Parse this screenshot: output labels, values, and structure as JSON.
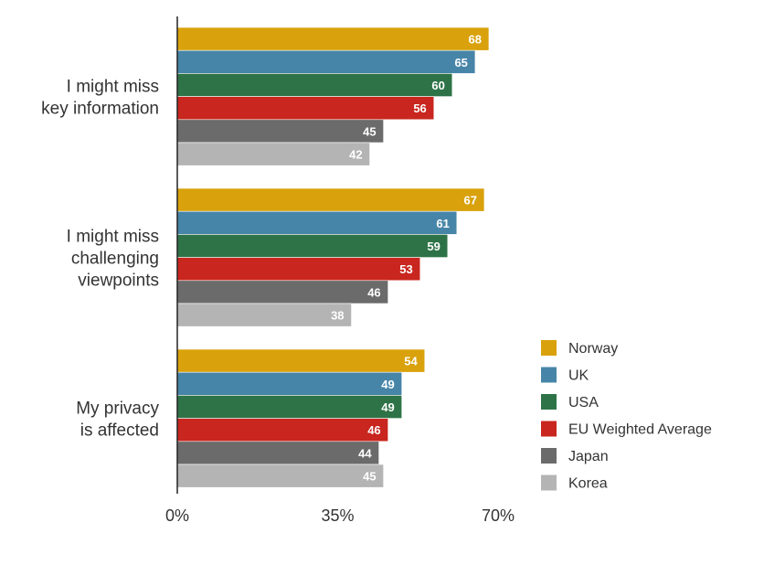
{
  "chart_data": {
    "type": "bar",
    "orientation": "horizontal",
    "categories": [
      [
        "I might miss",
        "key information"
      ],
      [
        "I might miss",
        "challenging",
        "viewpoints"
      ],
      [
        "My privacy",
        "is affected"
      ]
    ],
    "series": [
      {
        "name": "Norway",
        "color": "#D9A10B",
        "values": [
          68,
          67,
          54
        ]
      },
      {
        "name": "UK",
        "color": "#4785A8",
        "values": [
          65,
          61,
          49
        ]
      },
      {
        "name": "USA",
        "color": "#2E7347",
        "values": [
          60,
          59,
          49
        ]
      },
      {
        "name": "EU Weighted Average",
        "color": "#C8261E",
        "values": [
          56,
          53,
          46
        ]
      },
      {
        "name": "Japan",
        "color": "#6B6B6B",
        "values": [
          45,
          46,
          44
        ]
      },
      {
        "name": "Korea",
        "color": "#B4B4B4",
        "values": [
          42,
          38,
          45
        ]
      }
    ],
    "xticks": [
      "0%",
      "35%",
      "70%"
    ],
    "xtick_values": [
      0,
      35,
      70
    ],
    "xlim": [
      0,
      70
    ],
    "unit": "%",
    "grid": false,
    "legend_position": "right"
  }
}
